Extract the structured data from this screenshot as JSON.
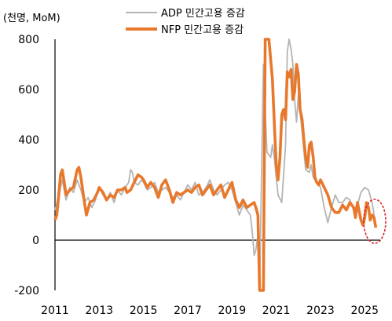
{
  "chart_data": {
    "type": "line",
    "unit_label": "(천명, MoM)",
    "ylim": [
      -200,
      800
    ],
    "yticks": [
      800,
      600,
      400,
      200,
      0,
      -200
    ],
    "xticks": [
      2011,
      2013,
      2015,
      2017,
      2019,
      2021,
      2023,
      2025
    ],
    "xlim": [
      2011,
      2025.7
    ],
    "grid": false,
    "legend_position": "top-center",
    "series": [
      {
        "name": "ADP 민간고용 증감",
        "color": "#b4b4b4",
        "points": [
          [
            2011.0,
            120
          ],
          [
            2011.17,
            180
          ],
          [
            2011.33,
            240
          ],
          [
            2011.5,
            160
          ],
          [
            2011.67,
            210
          ],
          [
            2011.83,
            190
          ],
          [
            2012.0,
            240
          ],
          [
            2012.17,
            200
          ],
          [
            2012.33,
            150
          ],
          [
            2012.5,
            170
          ],
          [
            2012.67,
            130
          ],
          [
            2012.83,
            160
          ],
          [
            2013.0,
            210
          ],
          [
            2013.17,
            180
          ],
          [
            2013.33,
            160
          ],
          [
            2013.5,
            190
          ],
          [
            2013.67,
            150
          ],
          [
            2013.83,
            200
          ],
          [
            2014.0,
            180
          ],
          [
            2014.17,
            210
          ],
          [
            2014.33,
            230
          ],
          [
            2014.42,
            280
          ],
          [
            2014.5,
            270
          ],
          [
            2014.58,
            230
          ],
          [
            2014.75,
            220
          ],
          [
            2014.92,
            240
          ],
          [
            2015.0,
            230
          ],
          [
            2015.17,
            200
          ],
          [
            2015.33,
            210
          ],
          [
            2015.5,
            230
          ],
          [
            2015.67,
            190
          ],
          [
            2015.83,
            200
          ],
          [
            2016.0,
            210
          ],
          [
            2016.17,
            190
          ],
          [
            2016.33,
            170
          ],
          [
            2016.5,
            180
          ],
          [
            2016.67,
            160
          ],
          [
            2016.83,
            190
          ],
          [
            2017.0,
            220
          ],
          [
            2017.17,
            200
          ],
          [
            2017.33,
            230
          ],
          [
            2017.5,
            180
          ],
          [
            2017.67,
            190
          ],
          [
            2017.83,
            210
          ],
          [
            2018.0,
            240
          ],
          [
            2018.17,
            200
          ],
          [
            2018.33,
            180
          ],
          [
            2018.5,
            200
          ],
          [
            2018.67,
            220
          ],
          [
            2018.83,
            230
          ],
          [
            2019.0,
            200
          ],
          [
            2019.17,
            150
          ],
          [
            2019.33,
            100
          ],
          [
            2019.5,
            140
          ],
          [
            2019.67,
            120
          ],
          [
            2019.83,
            100
          ],
          [
            2019.92,
            30
          ],
          [
            2020.0,
            -60
          ],
          [
            2020.08,
            -40
          ],
          [
            2020.17,
            20
          ],
          [
            2020.25,
            -200
          ],
          [
            2020.42,
            700
          ],
          [
            2020.58,
            350
          ],
          [
            2020.75,
            330
          ],
          [
            2020.83,
            380
          ],
          [
            2020.92,
            320
          ],
          [
            2021.08,
            180
          ],
          [
            2021.25,
            150
          ],
          [
            2021.42,
            380
          ],
          [
            2021.5,
            750
          ],
          [
            2021.58,
            820
          ],
          [
            2021.67,
            760
          ],
          [
            2021.75,
            700
          ],
          [
            2021.83,
            560
          ],
          [
            2021.92,
            470
          ],
          [
            2022.0,
            580
          ],
          [
            2022.17,
            430
          ],
          [
            2022.33,
            280
          ],
          [
            2022.5,
            270
          ],
          [
            2022.58,
            300
          ],
          [
            2022.67,
            250
          ],
          [
            2022.83,
            230
          ],
          [
            2023.0,
            210
          ],
          [
            2023.17,
            130
          ],
          [
            2023.33,
            70
          ],
          [
            2023.5,
            130
          ],
          [
            2023.67,
            180
          ],
          [
            2023.83,
            150
          ],
          [
            2024.0,
            150
          ],
          [
            2024.17,
            170
          ],
          [
            2024.33,
            160
          ],
          [
            2024.5,
            120
          ],
          [
            2024.67,
            140
          ],
          [
            2024.83,
            190
          ],
          [
            2025.0,
            210
          ],
          [
            2025.17,
            200
          ],
          [
            2025.33,
            150
          ],
          [
            2025.5,
            60
          ]
        ]
      },
      {
        "name": "NFP 민간고용 증감",
        "color": "#e8792c",
        "points": [
          [
            2011.0,
            80
          ],
          [
            2011.08,
            100
          ],
          [
            2011.17,
            180
          ],
          [
            2011.25,
            260
          ],
          [
            2011.33,
            280
          ],
          [
            2011.42,
            230
          ],
          [
            2011.5,
            180
          ],
          [
            2011.67,
            200
          ],
          [
            2011.83,
            210
          ],
          [
            2012.0,
            280
          ],
          [
            2012.08,
            290
          ],
          [
            2012.17,
            250
          ],
          [
            2012.33,
            150
          ],
          [
            2012.42,
            100
          ],
          [
            2012.58,
            150
          ],
          [
            2012.75,
            160
          ],
          [
            2012.92,
            190
          ],
          [
            2013.0,
            210
          ],
          [
            2013.17,
            190
          ],
          [
            2013.33,
            160
          ],
          [
            2013.5,
            180
          ],
          [
            2013.67,
            170
          ],
          [
            2013.83,
            200
          ],
          [
            2014.0,
            200
          ],
          [
            2014.17,
            210
          ],
          [
            2014.25,
            190
          ],
          [
            2014.42,
            200
          ],
          [
            2014.58,
            230
          ],
          [
            2014.75,
            260
          ],
          [
            2014.92,
            250
          ],
          [
            2015.0,
            240
          ],
          [
            2015.17,
            210
          ],
          [
            2015.33,
            230
          ],
          [
            2015.5,
            210
          ],
          [
            2015.67,
            170
          ],
          [
            2015.83,
            220
          ],
          [
            2016.0,
            240
          ],
          [
            2016.17,
            200
          ],
          [
            2016.33,
            150
          ],
          [
            2016.5,
            190
          ],
          [
            2016.67,
            180
          ],
          [
            2016.83,
            190
          ],
          [
            2017.0,
            200
          ],
          [
            2017.17,
            190
          ],
          [
            2017.33,
            210
          ],
          [
            2017.5,
            220
          ],
          [
            2017.67,
            180
          ],
          [
            2017.83,
            200
          ],
          [
            2018.0,
            220
          ],
          [
            2018.17,
            180
          ],
          [
            2018.33,
            200
          ],
          [
            2018.5,
            220
          ],
          [
            2018.67,
            170
          ],
          [
            2018.83,
            200
          ],
          [
            2019.0,
            230
          ],
          [
            2019.17,
            160
          ],
          [
            2019.33,
            130
          ],
          [
            2019.5,
            160
          ],
          [
            2019.67,
            130
          ],
          [
            2019.83,
            140
          ],
          [
            2020.0,
            150
          ],
          [
            2020.08,
            130
          ],
          [
            2020.17,
            100
          ],
          [
            2020.25,
            -200
          ],
          [
            2020.42,
            -200
          ],
          [
            2020.5,
            800
          ],
          [
            2020.67,
            820
          ],
          [
            2020.83,
            640
          ],
          [
            2020.92,
            450
          ],
          [
            2021.0,
            300
          ],
          [
            2021.08,
            240
          ],
          [
            2021.17,
            330
          ],
          [
            2021.25,
            500
          ],
          [
            2021.33,
            520
          ],
          [
            2021.42,
            480
          ],
          [
            2021.5,
            670
          ],
          [
            2021.58,
            650
          ],
          [
            2021.67,
            680
          ],
          [
            2021.75,
            560
          ],
          [
            2021.83,
            590
          ],
          [
            2021.92,
            700
          ],
          [
            2022.0,
            660
          ],
          [
            2022.08,
            520
          ],
          [
            2022.17,
            480
          ],
          [
            2022.25,
            400
          ],
          [
            2022.33,
            330
          ],
          [
            2022.42,
            290
          ],
          [
            2022.5,
            380
          ],
          [
            2022.58,
            390
          ],
          [
            2022.67,
            330
          ],
          [
            2022.75,
            250
          ],
          [
            2022.83,
            230
          ],
          [
            2022.92,
            220
          ],
          [
            2023.0,
            240
          ],
          [
            2023.17,
            210
          ],
          [
            2023.33,
            180
          ],
          [
            2023.5,
            130
          ],
          [
            2023.67,
            110
          ],
          [
            2023.83,
            110
          ],
          [
            2024.0,
            140
          ],
          [
            2024.17,
            120
          ],
          [
            2024.33,
            150
          ],
          [
            2024.5,
            130
          ],
          [
            2024.58,
            90
          ],
          [
            2024.67,
            150
          ],
          [
            2024.83,
            80
          ],
          [
            2024.92,
            60
          ],
          [
            2025.0,
            90
          ],
          [
            2025.08,
            150
          ],
          [
            2025.17,
            130
          ],
          [
            2025.25,
            80
          ],
          [
            2025.33,
            100
          ],
          [
            2025.42,
            90
          ],
          [
            2025.5,
            50
          ]
        ]
      }
    ]
  }
}
